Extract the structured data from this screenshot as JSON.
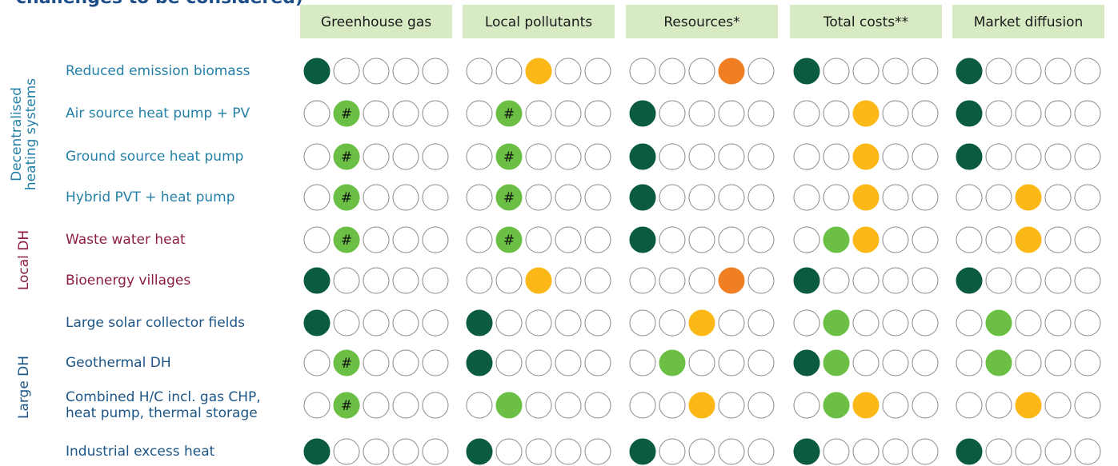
{
  "title": "challenges to be considered)",
  "columns": [
    "Greenhouse gas",
    "Local pollutants",
    "Resources*",
    "Total costs**",
    "Market diffusion"
  ],
  "colors": [
    "#0b5b3e",
    "#6abf44",
    "#fbb816",
    "#f07e22"
  ],
  "groups": [
    {
      "label": [
        "Decentralised",
        "heating systems"
      ],
      "color": "#2580a8",
      "rows": [
        0,
        3
      ]
    },
    {
      "label": [
        "Local DH"
      ],
      "color": "#8b1d42",
      "rows": [
        4,
        5
      ]
    },
    {
      "label": [
        "Large DH"
      ],
      "color": "#1c5587",
      "rows": [
        6,
        9
      ]
    }
  ],
  "rows": [
    {
      "label": [
        "Reduced emission biomass"
      ],
      "cells": [
        {
          "filled": [
            0
          ]
        },
        {
          "filled": [
            2
          ]
        },
        {
          "filled": [
            3
          ]
        },
        {
          "filled": [
            0
          ]
        },
        {
          "filled": [
            0
          ]
        }
      ]
    },
    {
      "label": [
        "Air source heat pump + PV"
      ],
      "cells": [
        {
          "filled": [
            1
          ],
          "mark": "#"
        },
        {
          "filled": [
            1
          ],
          "mark": "#"
        },
        {
          "filled": [
            0
          ]
        },
        {
          "filled": [
            2
          ]
        },
        {
          "filled": [
            0
          ]
        }
      ]
    },
    {
      "label": [
        "Ground source heat pump"
      ],
      "cells": [
        {
          "filled": [
            1
          ],
          "mark": "#"
        },
        {
          "filled": [
            1
          ],
          "mark": "#"
        },
        {
          "filled": [
            0
          ]
        },
        {
          "filled": [
            2
          ]
        },
        {
          "filled": [
            0
          ]
        }
      ]
    },
    {
      "label": [
        "Hybrid PVT + heat pump"
      ],
      "cells": [
        {
          "filled": [
            1
          ],
          "mark": "#"
        },
        {
          "filled": [
            1
          ],
          "mark": "#"
        },
        {
          "filled": [
            0
          ]
        },
        {
          "filled": [
            2
          ]
        },
        {
          "filled": [
            2
          ]
        }
      ]
    },
    {
      "label": [
        "Waste water heat"
      ],
      "cells": [
        {
          "filled": [
            1
          ],
          "mark": "#"
        },
        {
          "filled": [
            1
          ],
          "mark": "#"
        },
        {
          "filled": [
            0
          ]
        },
        {
          "filled": [
            1,
            2
          ]
        },
        {
          "filled": [
            2
          ]
        }
      ]
    },
    {
      "label": [
        "Bioenergy villages"
      ],
      "cells": [
        {
          "filled": [
            0
          ]
        },
        {
          "filled": [
            2
          ]
        },
        {
          "filled": [
            3
          ]
        },
        {
          "filled": [
            0
          ]
        },
        {
          "filled": [
            0
          ]
        }
      ]
    },
    {
      "label": [
        "Large solar collector fields"
      ],
      "cells": [
        {
          "filled": [
            0
          ]
        },
        {
          "filled": [
            0
          ]
        },
        {
          "filled": [
            2
          ]
        },
        {
          "filled": [
            1
          ]
        },
        {
          "filled": [
            1
          ]
        }
      ]
    },
    {
      "label": [
        "Geothermal DH"
      ],
      "cells": [
        {
          "filled": [
            1
          ],
          "mark": "#"
        },
        {
          "filled": [
            0
          ]
        },
        {
          "filled": [
            1
          ]
        },
        {
          "filled": [
            0,
            1
          ]
        },
        {
          "filled": [
            1
          ]
        }
      ]
    },
    {
      "label": [
        "Combined H/C incl. gas CHP,",
        "heat pump, thermal storage"
      ],
      "cells": [
        {
          "filled": [
            1
          ],
          "mark": "#"
        },
        {
          "filled": [
            1
          ]
        },
        {
          "filled": [
            2
          ]
        },
        {
          "filled": [
            1,
            2
          ]
        },
        {
          "filled": [
            2
          ]
        }
      ]
    },
    {
      "label": [
        "Industrial excess heat"
      ],
      "cells": [
        {
          "filled": [
            0
          ]
        },
        {
          "filled": [
            0
          ]
        },
        {
          "filled": [
            0
          ]
        },
        {
          "filled": [
            0
          ]
        },
        {
          "filled": [
            0
          ]
        }
      ]
    }
  ]
}
